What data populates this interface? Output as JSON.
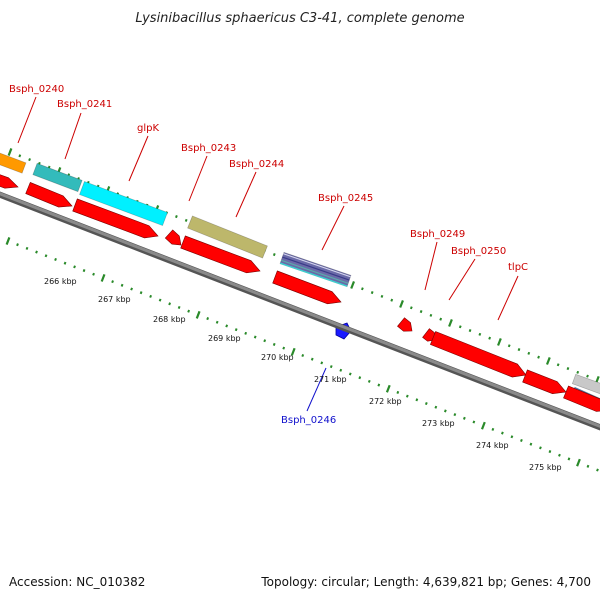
{
  "title": "Lysinibacillus sphaericus C3-41, complete genome",
  "footer": {
    "accession": "Accession: NC_010382",
    "topology": "Topology: circular; Length: 4,639,821 bp; Genes: 4,700"
  },
  "colors": {
    "backbone": "#8a8a8a",
    "backbone_dark": "#555555",
    "forward_marker": "#2a8a2a",
    "reverse_marker": "#2a8a2a",
    "cds": "#ff0000",
    "label_red": "#cc0000",
    "label_blue": "#1010cc",
    "orange": "#ff9900",
    "teal": "#33bbbb",
    "cyan": "#00f0ff",
    "olive": "#bdb76b",
    "purple": "#6a6aa8",
    "blue": "#1a1aff",
    "gray_feature": "#c8c8c8",
    "steel_blue": "#4f7fbf"
  },
  "scale": {
    "unit": "kbp",
    "ticks": [
      "266 kbp",
      "267 kbp",
      "268 kbp",
      "269 kbp",
      "270 kbp",
      "271 kbp",
      "272 kbp",
      "273 kbp",
      "274 kbp",
      "275 kbp"
    ]
  },
  "labels": [
    {
      "text": "Bsph_0240",
      "color": "red"
    },
    {
      "text": "Bsph_0241",
      "color": "red"
    },
    {
      "text": "glpK",
      "color": "red"
    },
    {
      "text": "Bsph_0243",
      "color": "red"
    },
    {
      "text": "Bsph_0244",
      "color": "red"
    },
    {
      "text": "Bsph_0245",
      "color": "red"
    },
    {
      "text": "Bsph_0249",
      "color": "red"
    },
    {
      "text": "Bsph_0250",
      "color": "red"
    },
    {
      "text": "tlpC",
      "color": "red"
    },
    {
      "text": "Bsph_0246",
      "color": "blue"
    }
  ]
}
